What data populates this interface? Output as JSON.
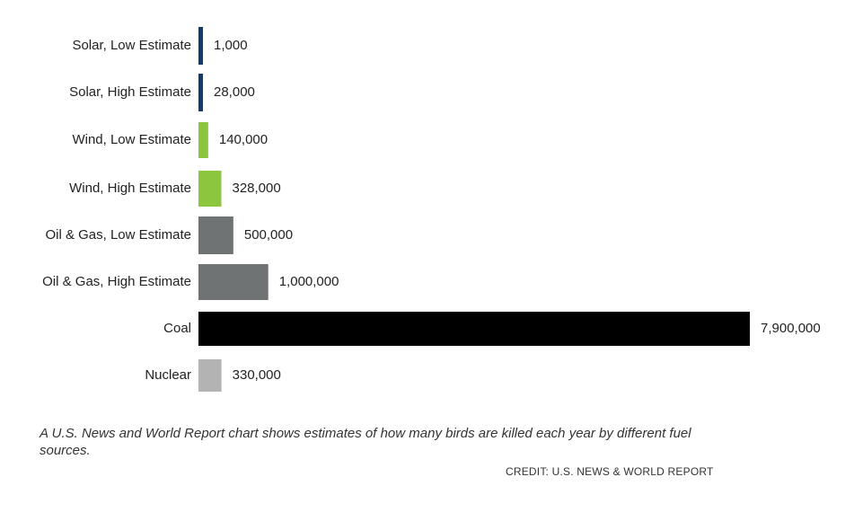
{
  "chart_data": {
    "type": "bar",
    "orientation": "horizontal",
    "categories": [
      "Solar, Low Estimate",
      "Solar, High Estimate",
      "Wind, Low Estimate",
      "Wind, High Estimate",
      "Oil & Gas, Low Estimate",
      "Oil & Gas, High Estimate",
      "Coal",
      "Nuclear"
    ],
    "values": [
      1000,
      28000,
      140000,
      328000,
      500000,
      1000000,
      7900000,
      330000
    ],
    "value_labels": [
      "1,000",
      "28,000",
      "140,000",
      "328,000",
      "500,000",
      "1,000,000",
      "7,900,000",
      "330,000"
    ],
    "colors": [
      "#143b6b",
      "#143b6b",
      "#8cc63f",
      "#8cc63f",
      "#707374",
      "#707374",
      "#000000",
      "#b3b3b3"
    ],
    "xlim": [
      0,
      7900000
    ],
    "grid": false,
    "legend": false,
    "title": "",
    "xlabel": "",
    "ylabel": ""
  },
  "caption": "A U.S. News and World Report chart shows estimates of how many birds are killed each year by different fuel sources.",
  "credit": "CREDIT: U.S. NEWS & WORLD REPORT"
}
